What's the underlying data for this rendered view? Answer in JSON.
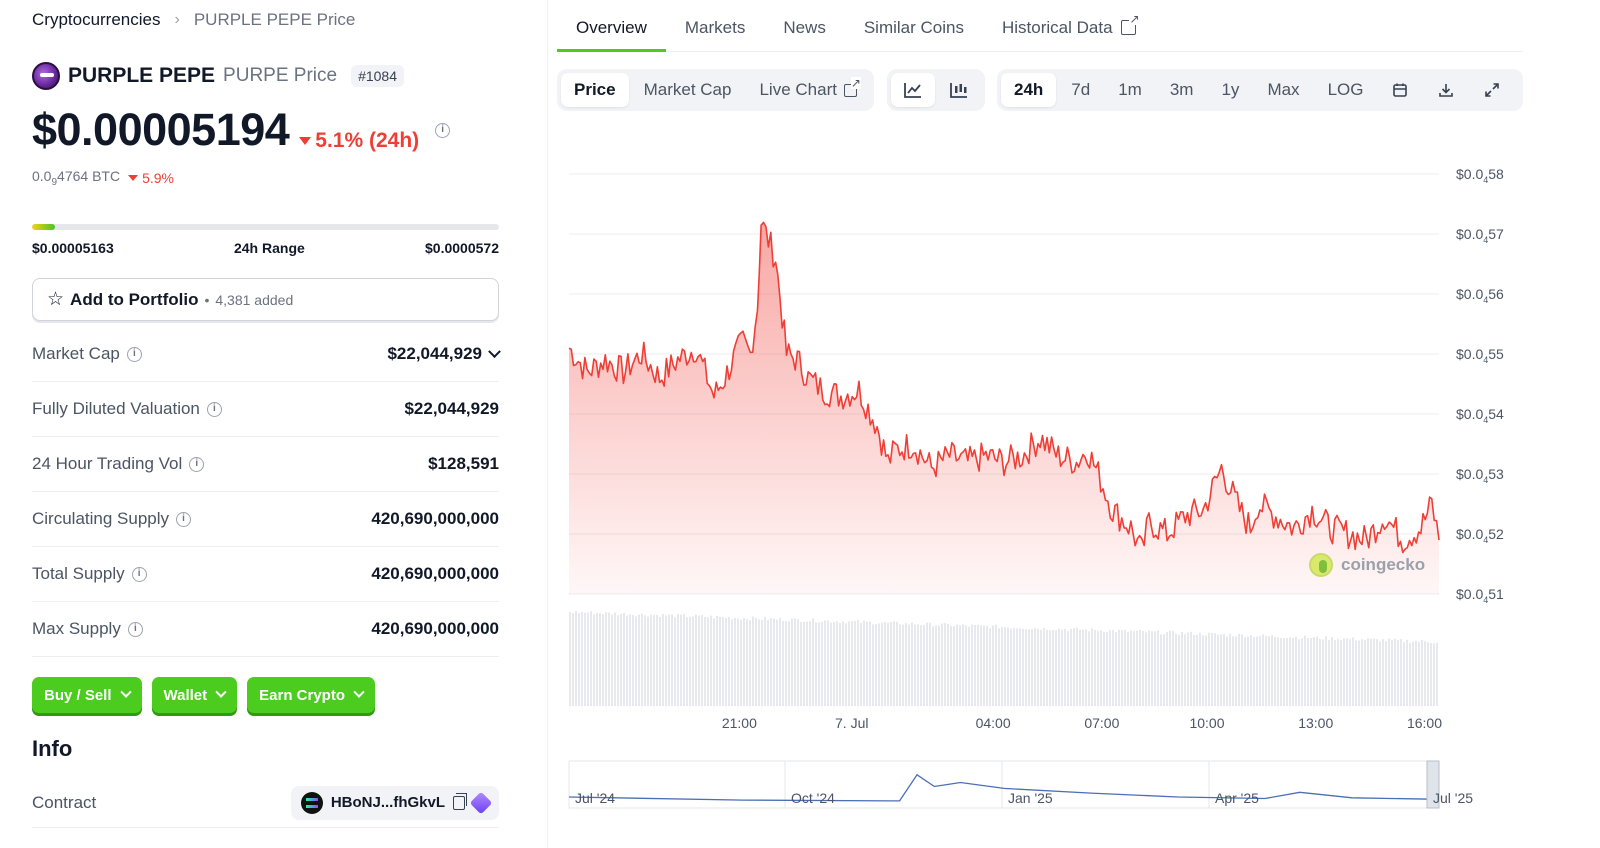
{
  "breadcrumb": {
    "root": "Cryptocurrencies",
    "separator": "›",
    "current": "PURPLE PEPE Price"
  },
  "coin": {
    "name": "PURPLE PEPE",
    "symbol_label": "PURPE Price",
    "rank": "#1084",
    "price": "$0.00005194",
    "change_24h": "5.1% (24h)",
    "change_direction": "down",
    "btc_price_prefix": "0.0",
    "btc_price_sub": "9",
    "btc_price_suffix": "4764 BTC",
    "btc_change": "5.9%",
    "info_icon_glyph": "i"
  },
  "range": {
    "low": "$0.00005163",
    "label": "24h Range",
    "high": "$0.0000572",
    "position": 0.05
  },
  "portfolio": {
    "star_icon": "☆",
    "label": "Add to Portfolio",
    "separator": "•",
    "added": "4,381 added"
  },
  "stats": [
    {
      "label": "Market Cap",
      "value": "$22,044,929",
      "has_info": true,
      "has_chevron": true
    },
    {
      "label": "Fully Diluted Valuation",
      "value": "$22,044,929",
      "has_info": true,
      "has_chevron": false
    },
    {
      "label": "24 Hour Trading Vol",
      "value": "$128,591",
      "has_info": true,
      "has_chevron": false
    },
    {
      "label": "Circulating Supply",
      "value": "420,690,000,000",
      "has_info": true,
      "has_chevron": false
    },
    {
      "label": "Total Supply",
      "value": "420,690,000,000",
      "has_info": true,
      "has_chevron": false
    },
    {
      "label": "Max Supply",
      "value": "420,690,000,000",
      "has_info": true,
      "has_chevron": false
    }
  ],
  "actions": {
    "buy_sell": "Buy / Sell",
    "wallet": "Wallet",
    "earn": "Earn Crypto"
  },
  "info": {
    "title": "Info",
    "contract_label": "Contract",
    "contract_addr": "HBoNJ...fhGkvL"
  },
  "tabs": [
    {
      "label": "Overview",
      "active": true,
      "external": false
    },
    {
      "label": "Markets",
      "active": false,
      "external": false
    },
    {
      "label": "News",
      "active": false,
      "external": false
    },
    {
      "label": "Similar Coins",
      "active": false,
      "external": false
    },
    {
      "label": "Historical Data",
      "active": false,
      "external": true
    }
  ],
  "chart_toolbar": {
    "metric": [
      "Price",
      "Market Cap",
      "Live Chart"
    ],
    "metric_active": "Price",
    "ranges": [
      "24h",
      "7d",
      "1m",
      "3m",
      "1y",
      "Max",
      "LOG"
    ],
    "range_active": "24h",
    "icons": [
      "line-chart-icon",
      "candlestick-icon",
      "calendar-icon",
      "download-icon",
      "fullscreen-icon"
    ]
  },
  "colors": {
    "accent_green": "#4bcc1e",
    "down_red": "#ef3e36",
    "nav_line": "#4a6fb5"
  },
  "watermark": "coingecko",
  "chart_data": {
    "type": "area",
    "title": "",
    "ylabel": "",
    "xlabel": "",
    "y_axis_ticks": [
      {
        "prefix": "$0.0",
        "sub": "4",
        "suffix": "58",
        "value": 5.8e-05
      },
      {
        "prefix": "$0.0",
        "sub": "4",
        "suffix": "57",
        "value": 5.7e-05
      },
      {
        "prefix": "$0.0",
        "sub": "4",
        "suffix": "56",
        "value": 5.6e-05
      },
      {
        "prefix": "$0.0",
        "sub": "4",
        "suffix": "55",
        "value": 5.5e-05
      },
      {
        "prefix": "$0.0",
        "sub": "4",
        "suffix": "54",
        "value": 5.4e-05
      },
      {
        "prefix": "$0.0",
        "sub": "4",
        "suffix": "53",
        "value": 5.3e-05
      },
      {
        "prefix": "$0.0",
        "sub": "4",
        "suffix": "52",
        "value": 5.2e-05
      },
      {
        "prefix": "$0.0",
        "sub": "4",
        "suffix": "51",
        "value": 5.1e-05
      }
    ],
    "ylim": [
      5.1e-05,
      5.8e-05
    ],
    "x_ticks": [
      "21:00",
      "7. Jul",
      "04:00",
      "07:00",
      "10:00",
      "13:00",
      "16:00"
    ],
    "x_tick_hours": [
      4.7,
      7.8,
      11.7,
      14.7,
      17.6,
      20.6,
      23.6
    ],
    "xlim_hours": [
      0,
      24
    ],
    "series": [
      {
        "values_hours": [
          0,
          0.5,
          1,
          1.5,
          2,
          2.5,
          3,
          3.5,
          4,
          4.3,
          4.6,
          4.8,
          5,
          5.2,
          5.3,
          5.5,
          5.7,
          6,
          6.3,
          6.6,
          7,
          7.5,
          8,
          8.5,
          8.8,
          9,
          9.5,
          10,
          10.5,
          11,
          11.5,
          12,
          12.5,
          13,
          13.5,
          14,
          14.3,
          14.6,
          15,
          15.5,
          15.8,
          16,
          16.5,
          17,
          17.5,
          18,
          18.5,
          18.8,
          19,
          19.5,
          20,
          20.5,
          21,
          21.5,
          22,
          22.5,
          23,
          23.5,
          23.8,
          24
        ],
        "values": [
          5.51e-05,
          5.47e-05,
          5.49e-05,
          5.47e-05,
          5.5e-05,
          5.46e-05,
          5.49e-05,
          5.51e-05,
          5.43e-05,
          5.46e-05,
          5.5e-05,
          5.52e-05,
          5.5e-05,
          5.58e-05,
          5.72e-05,
          5.69e-05,
          5.66e-05,
          5.5e-05,
          5.49e-05,
          5.46e-05,
          5.44e-05,
          5.43e-05,
          5.44e-05,
          5.38e-05,
          5.32e-05,
          5.34e-05,
          5.35e-05,
          5.31e-05,
          5.33e-05,
          5.32e-05,
          5.33e-05,
          5.32e-05,
          5.33e-05,
          5.36e-05,
          5.33e-05,
          5.32e-05,
          5.34e-05,
          5.3e-05,
          5.24e-05,
          5.21e-05,
          5.17e-05,
          5.22e-05,
          5.2e-05,
          5.23e-05,
          5.24e-05,
          5.31e-05,
          5.24e-05,
          5.21e-05,
          5.25e-05,
          5.23e-05,
          5.21e-05,
          5.24e-05,
          5.21e-05,
          5.2e-05,
          5.19e-05,
          5.23e-05,
          5.19e-05,
          5.21e-05,
          5.25e-05,
          5.19e-05
        ]
      }
    ],
    "volume_relative": "flat",
    "navigator": {
      "labels": [
        "Jul '24",
        "Oct '24",
        "Jan '25",
        "Apr '25",
        "Jul '25"
      ]
    }
  }
}
